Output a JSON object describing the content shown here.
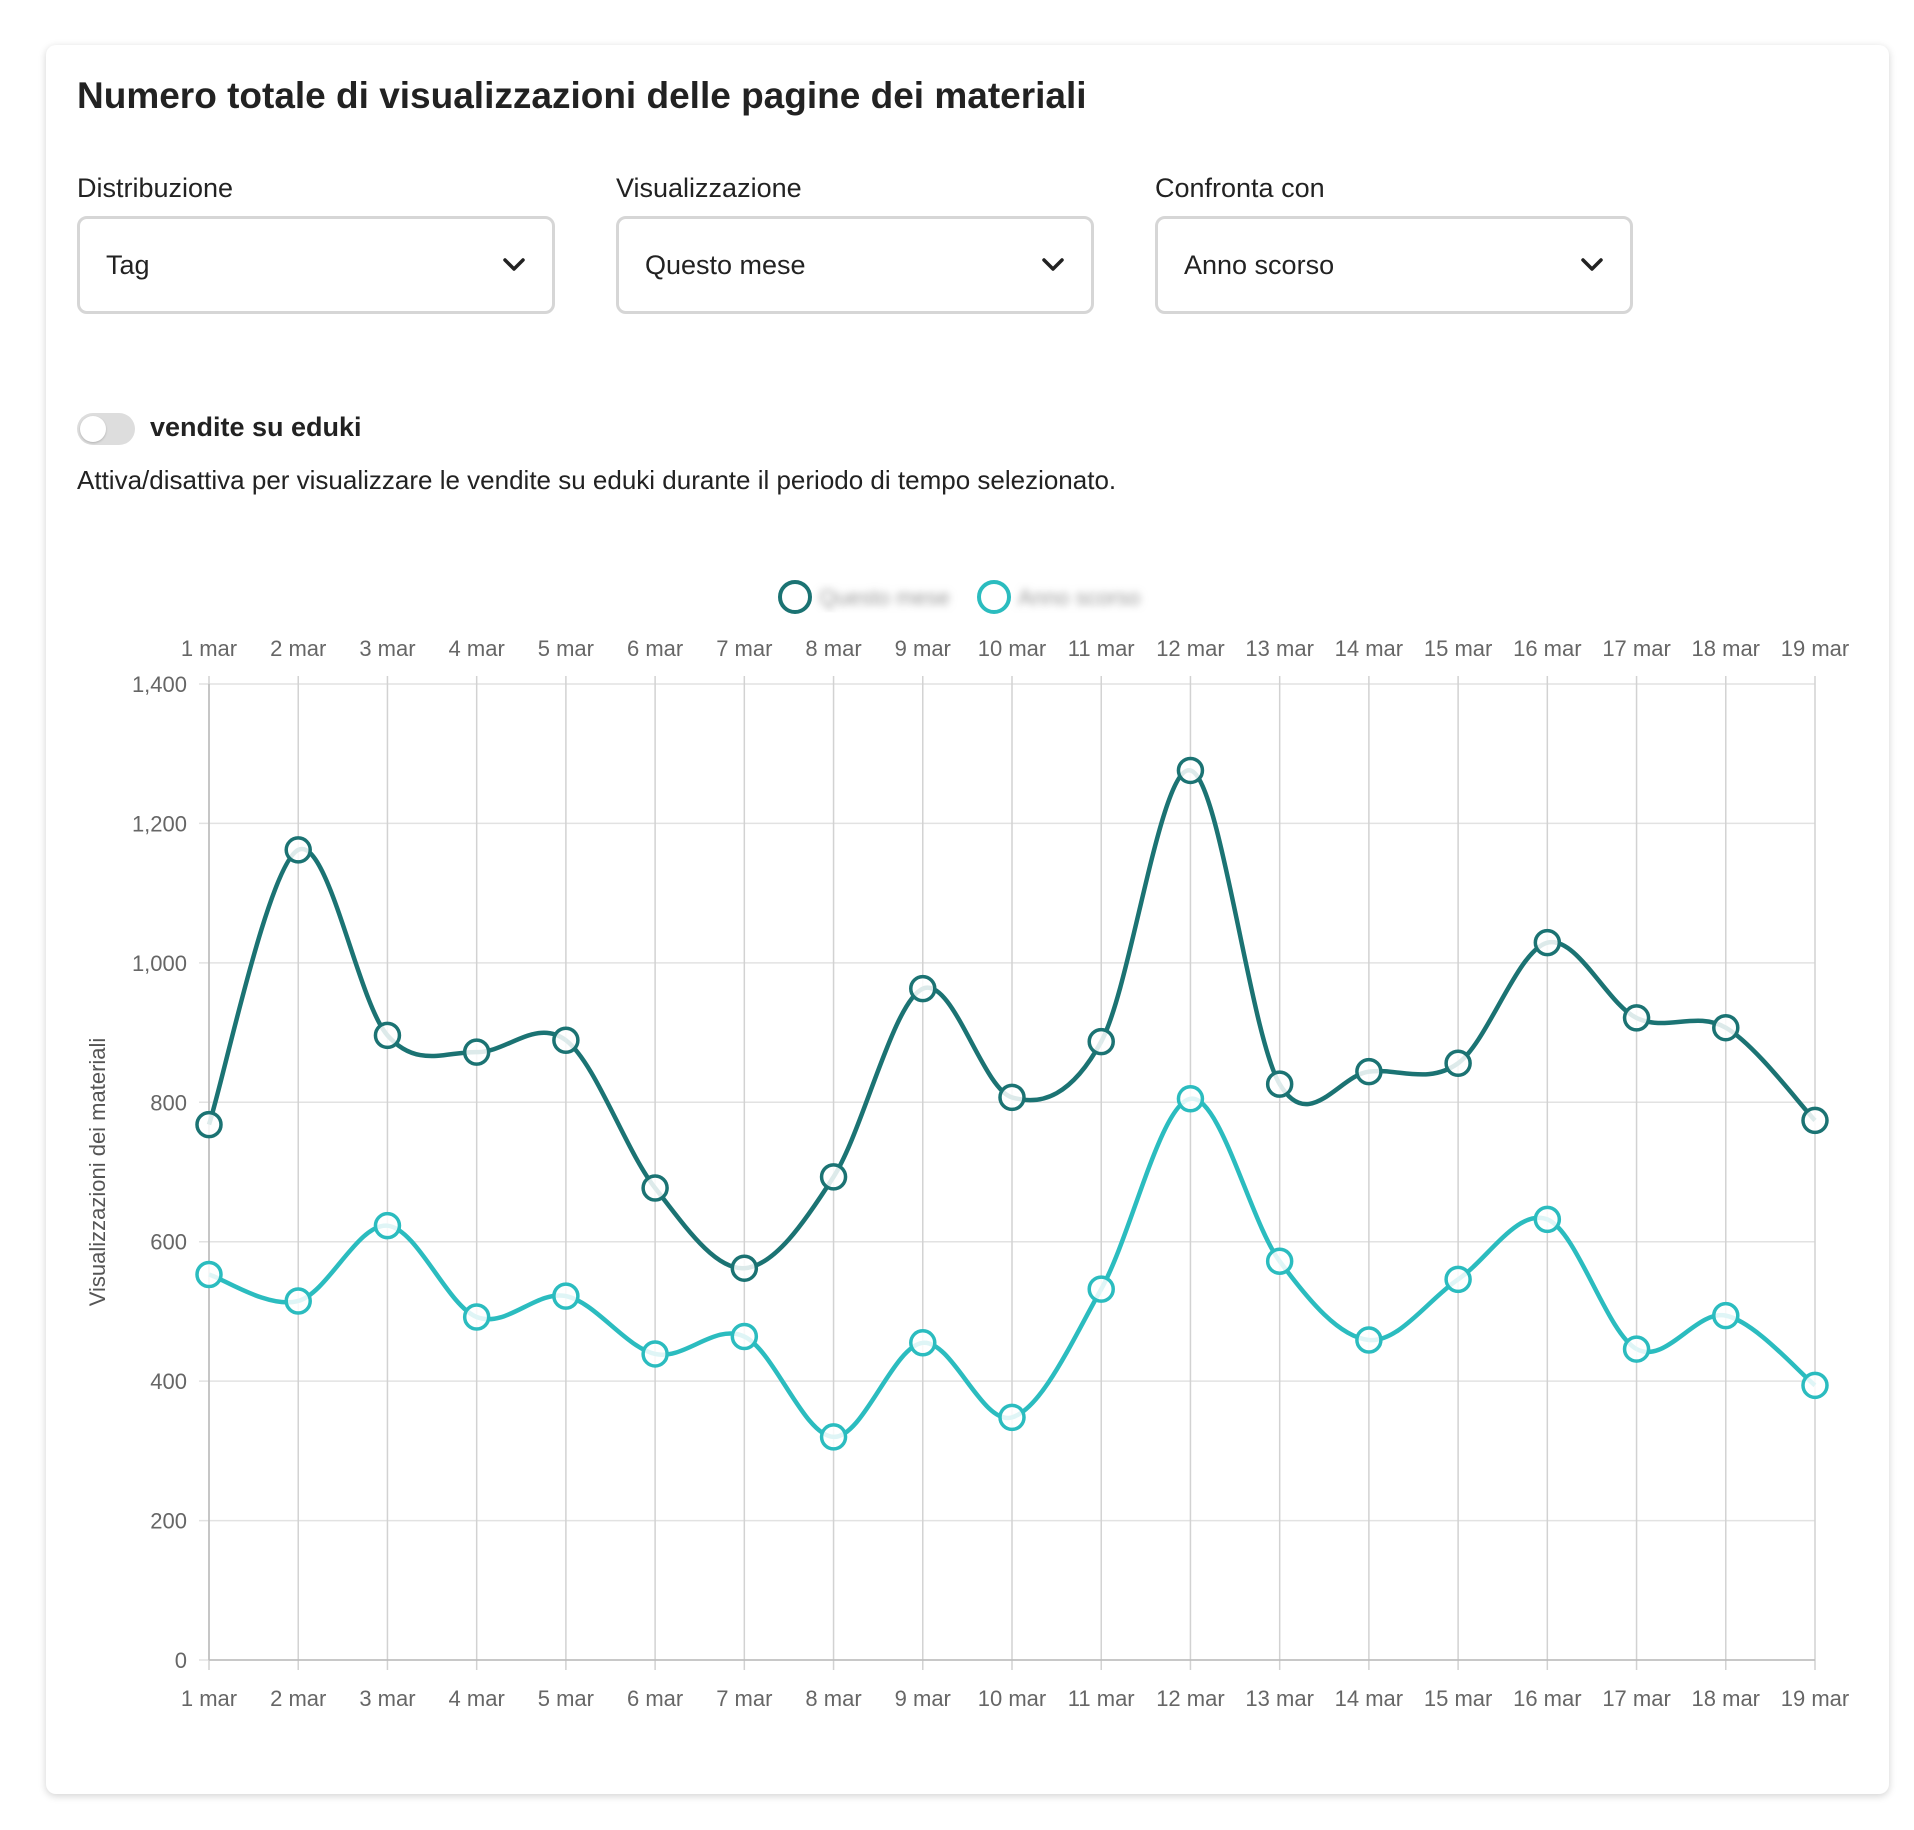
{
  "title": "Numero totale di visualizzazioni delle pagine dei materiali",
  "filters": [
    {
      "label": "Distribuzione",
      "value": "Tag"
    },
    {
      "label": "Visualizzazione",
      "value": "Questo mese"
    },
    {
      "label": "Confronta con",
      "value": "Anno scorso"
    }
  ],
  "toggle": {
    "label": "vendite su eduki",
    "on": false,
    "description": "Attiva/disattiva per visualizzare le vendite su eduki durante il periodo di tempo selezionato."
  },
  "chart_data": {
    "type": "line",
    "title": "",
    "xlabel": "",
    "ylabel": "Visualizzazioni dei materiali",
    "ylim": [
      0,
      1400
    ],
    "yticks": [
      "0",
      "200",
      "400",
      "600",
      "800",
      "1,000",
      "1,200",
      "1,400"
    ],
    "ytick_values": [
      0,
      200,
      400,
      600,
      800,
      1000,
      1200,
      1400
    ],
    "categories": [
      "1 mar",
      "2 mar",
      "3 mar",
      "4 mar",
      "5 mar",
      "6 mar",
      "7 mar",
      "8 mar",
      "9 mar",
      "10 mar",
      "11 mar",
      "12 mar",
      "13 mar",
      "14 mar",
      "15 mar",
      "16 mar",
      "17 mar",
      "18 mar",
      "19 mar"
    ],
    "grid": true,
    "legend_position": "top",
    "series": [
      {
        "name": "Questo mese",
        "color": "#1b7373",
        "values": [
          768,
          1162,
          896,
          872,
          889,
          677,
          562,
          693,
          963,
          807,
          887,
          1276,
          826,
          844,
          856,
          1029,
          921,
          907,
          774
        ]
      },
      {
        "name": "Anno scorso",
        "color": "#2bbcbf",
        "values": [
          553,
          515,
          623,
          492,
          522,
          439,
          464,
          320,
          455,
          348,
          532,
          805,
          572,
          459,
          546,
          632,
          446,
          494,
          394
        ]
      }
    ]
  }
}
